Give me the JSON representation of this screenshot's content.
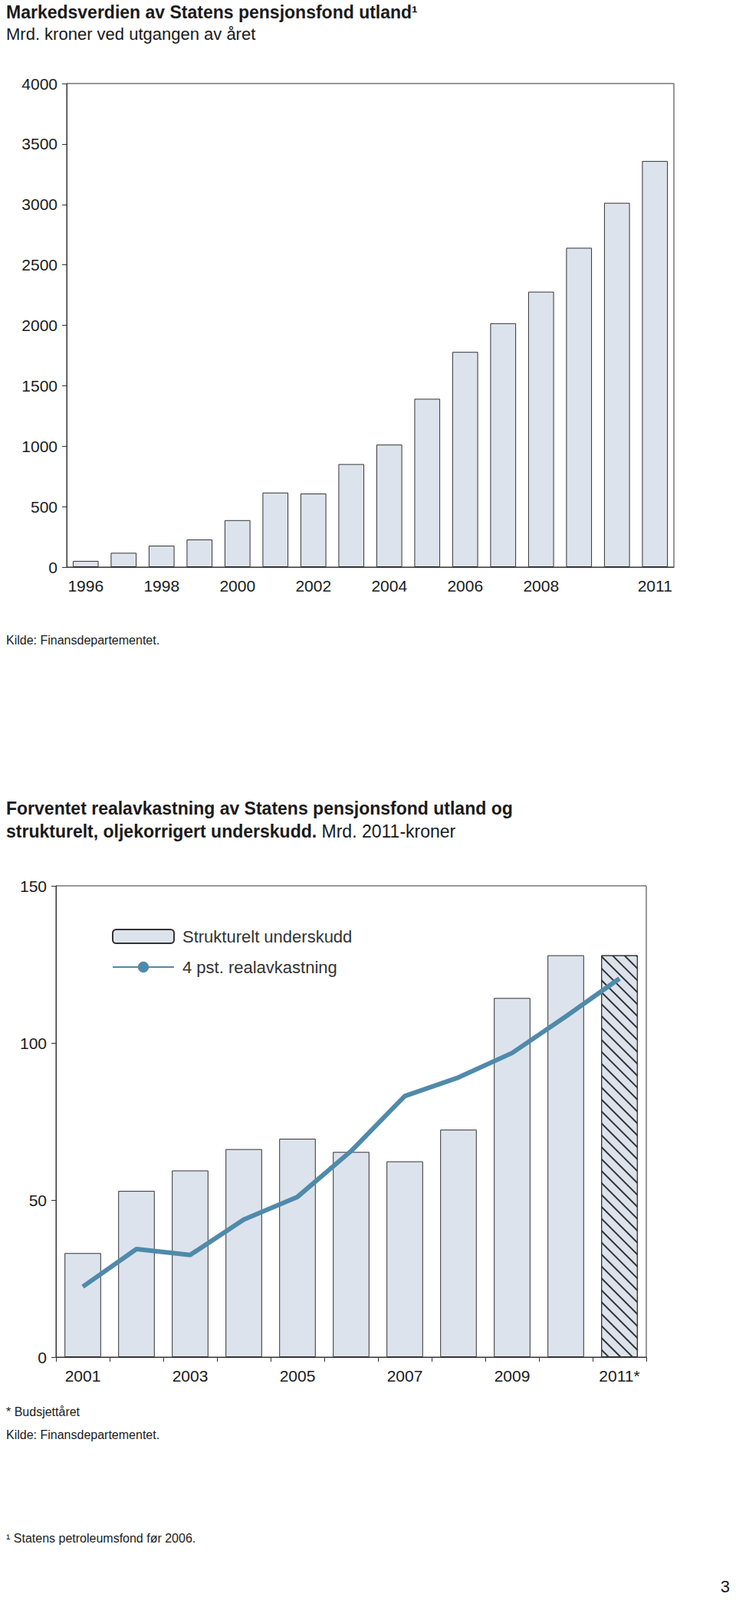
{
  "chart_data": [
    {
      "type": "bar",
      "title": "Markedsverdien av Statens pensjonsfond utland¹",
      "subtitle": "Mrd. kroner ved utgangen av året",
      "categories": [
        "1996",
        null,
        "1998",
        null,
        "2000",
        null,
        "2002",
        null,
        "2004",
        null,
        "2006",
        null,
        "2008",
        null,
        null,
        "2011"
      ],
      "values": [
        51,
        118,
        177,
        228,
        388,
        616,
        608,
        852,
        1013,
        1392,
        1780,
        2017,
        2278,
        2641,
        3013,
        3359
      ],
      "color": "#dde3ec",
      "ylim": [
        0,
        4000
      ],
      "yticks": [
        0,
        500,
        1000,
        1500,
        2000,
        2500,
        3000,
        3500,
        4000
      ],
      "grid": false,
      "source": "Kilde: Finansdepartementet."
    },
    {
      "type": "bar",
      "title": "Forventet realavkastning av Statens pensjonsfond utland og strukturelt, oljekorrigert underskudd.",
      "subtitle": "Mrd. 2011-kroner",
      "categories": [
        "2001",
        null,
        "2003",
        null,
        "2005",
        null,
        "2007",
        null,
        "2009",
        null,
        "2011*"
      ],
      "series": [
        {
          "name": "Strukturelt underskudd",
          "type": "bar",
          "color": "#dde3ec",
          "values": [
            33.1,
            52.9,
            59.4,
            66.2,
            69.5,
            65.3,
            62.3,
            72.4,
            114.3,
            127.9,
            127.9
          ]
        },
        {
          "name": "4 pst. realavkastning",
          "type": "line",
          "color": "#4f8aab",
          "values": [
            22.4,
            34.4,
            32.5,
            43.8,
            51.0,
            65.6,
            83.1,
            89.0,
            96.8,
            108.4,
            120.5
          ]
        }
      ],
      "ylim": [
        0,
        150
      ],
      "yticks": [
        0,
        50,
        100,
        150
      ],
      "grid": false,
      "legend": "top-left",
      "note": "* Budsjettåret",
      "source": "Kilde: Finansdepartementet."
    }
  ],
  "footnote": "¹ Statens petroleumsfond før 2006.",
  "page_number": "3"
}
